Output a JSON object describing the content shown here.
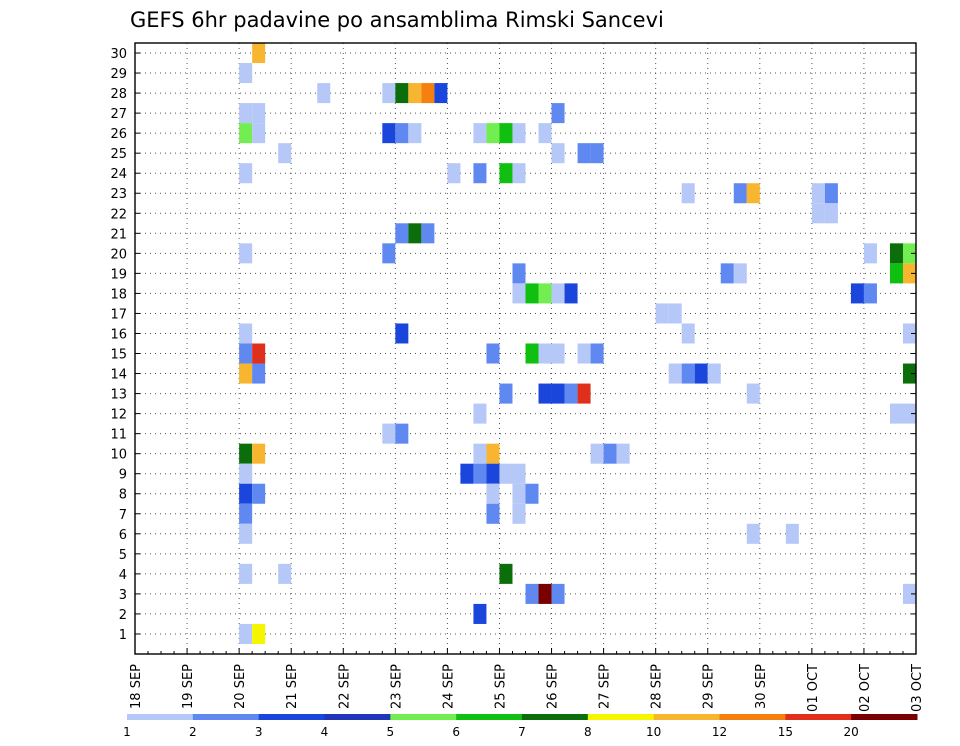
{
  "chart_data": {
    "type": "heatmap",
    "title": "GEFS 6hr padavine po ansamblima Rimski Sancevi",
    "xlabel": "",
    "ylabel": "",
    "x_ticks": [
      "18 SEP",
      "19 SEP",
      "20 SEP",
      "21 SEP",
      "22 SEP",
      "23 SEP",
      "24 SEP",
      "25 SEP",
      "26 SEP",
      "27 SEP",
      "28 SEP",
      "29 SEP",
      "30 SEP",
      "01 OCT",
      "02 OCT",
      "03 OCT"
    ],
    "x_step": "6hr",
    "y_range": [
      0,
      30
    ],
    "y_ticks": [
      1,
      2,
      3,
      4,
      5,
      6,
      7,
      8,
      9,
      10,
      11,
      12,
      13,
      14,
      15,
      16,
      17,
      18,
      19,
      20,
      21,
      22,
      23,
      24,
      25,
      26,
      27,
      28,
      29,
      30
    ],
    "grid": true,
    "legend_position": "bottom",
    "legend_labels": [
      "1",
      "2",
      "3",
      "4",
      "5",
      "6",
      "7",
      "8",
      "10",
      "12",
      "15",
      "20"
    ],
    "legend_colors": [
      "#b5c8f7",
      "#5f88f0",
      "#1a46dc",
      "#2035b8",
      "#72ee50",
      "#10c010",
      "#0b6e0b",
      "#f5f500",
      "#f7b530",
      "#f57f0f",
      "#e0301b",
      "#7a0000"
    ],
    "cells": [
      {
        "x": "20 SEP 06",
        "y": 30,
        "bin": 10
      },
      {
        "x": "20 SEP 00",
        "y": 29,
        "bin": 1
      },
      {
        "x": "21 SEP 12",
        "y": 28,
        "bin": 1
      },
      {
        "x": "22 SEP 18",
        "y": 28,
        "bin": 1
      },
      {
        "x": "23 SEP 00",
        "y": 28,
        "bin": 7
      },
      {
        "x": "23 SEP 06",
        "y": 28,
        "bin": 10
      },
      {
        "x": "23 SEP 12",
        "y": 28,
        "bin": 12
      },
      {
        "x": "23 SEP 18",
        "y": 28,
        "bin": 3
      },
      {
        "x": "20 SEP 00",
        "y": 27,
        "bin": 1
      },
      {
        "x": "20 SEP 06",
        "y": 27,
        "bin": 1
      },
      {
        "x": "26 SEP 00",
        "y": 27,
        "bin": 2
      },
      {
        "x": "20 SEP 00",
        "y": 26,
        "bin": 5
      },
      {
        "x": "20 SEP 06",
        "y": 26,
        "bin": 1
      },
      {
        "x": "22 SEP 18",
        "y": 26,
        "bin": 3
      },
      {
        "x": "23 SEP 00",
        "y": 26,
        "bin": 2
      },
      {
        "x": "23 SEP 06",
        "y": 26,
        "bin": 1
      },
      {
        "x": "24 SEP 12",
        "y": 26,
        "bin": 1
      },
      {
        "x": "24 SEP 18",
        "y": 26,
        "bin": 5
      },
      {
        "x": "25 SEP 00",
        "y": 26,
        "bin": 6
      },
      {
        "x": "25 SEP 06",
        "y": 26,
        "bin": 1
      },
      {
        "x": "25 SEP 18",
        "y": 26,
        "bin": 1
      },
      {
        "x": "20 SEP 18",
        "y": 25,
        "bin": 1
      },
      {
        "x": "26 SEP 00",
        "y": 25,
        "bin": 1
      },
      {
        "x": "26 SEP 12",
        "y": 25,
        "bin": 2
      },
      {
        "x": "26 SEP 18",
        "y": 25,
        "bin": 2
      },
      {
        "x": "20 SEP 00",
        "y": 24,
        "bin": 1
      },
      {
        "x": "24 SEP 00",
        "y": 24,
        "bin": 1
      },
      {
        "x": "24 SEP 12",
        "y": 24,
        "bin": 2
      },
      {
        "x": "25 SEP 00",
        "y": 24,
        "bin": 6
      },
      {
        "x": "25 SEP 06",
        "y": 24,
        "bin": 1
      },
      {
        "x": "28 SEP 12",
        "y": 23,
        "bin": 1
      },
      {
        "x": "29 SEP 12",
        "y": 23,
        "bin": 2
      },
      {
        "x": "29 SEP 18",
        "y": 23,
        "bin": 10
      },
      {
        "x": "01 OCT 00",
        "y": 23,
        "bin": 1
      },
      {
        "x": "01 OCT 06",
        "y": 23,
        "bin": 2
      },
      {
        "x": "01 OCT 00",
        "y": 22,
        "bin": 1
      },
      {
        "x": "01 OCT 06",
        "y": 22,
        "bin": 1
      },
      {
        "x": "23 SEP 00",
        "y": 21,
        "bin": 2
      },
      {
        "x": "23 SEP 06",
        "y": 21,
        "bin": 7
      },
      {
        "x": "23 SEP 12",
        "y": 21,
        "bin": 2
      },
      {
        "x": "20 SEP 00",
        "y": 20,
        "bin": 1
      },
      {
        "x": "22 SEP 18",
        "y": 20,
        "bin": 2
      },
      {
        "x": "02 OCT 00",
        "y": 20,
        "bin": 1
      },
      {
        "x": "02 OCT 12",
        "y": 20,
        "bin": 7
      },
      {
        "x": "02 OCT 18",
        "y": 20,
        "bin": 5
      },
      {
        "x": "25 SEP 06",
        "y": 19,
        "bin": 2
      },
      {
        "x": "29 SEP 06",
        "y": 19,
        "bin": 2
      },
      {
        "x": "29 SEP 12",
        "y": 19,
        "bin": 1
      },
      {
        "x": "02 OCT 12",
        "y": 19,
        "bin": 6
      },
      {
        "x": "02 OCT 18",
        "y": 19,
        "bin": 10
      },
      {
        "x": "25 SEP 06",
        "y": 18,
        "bin": 1
      },
      {
        "x": "25 SEP 12",
        "y": 18,
        "bin": 6
      },
      {
        "x": "25 SEP 18",
        "y": 18,
        "bin": 5
      },
      {
        "x": "26 SEP 00",
        "y": 18,
        "bin": 1
      },
      {
        "x": "26 SEP 06",
        "y": 18,
        "bin": 3
      },
      {
        "x": "01 OCT 18",
        "y": 18,
        "bin": 3
      },
      {
        "x": "02 OCT 00",
        "y": 18,
        "bin": 2
      },
      {
        "x": "28 SEP 00",
        "y": 17,
        "bin": 1
      },
      {
        "x": "28 SEP 06",
        "y": 17,
        "bin": 1
      },
      {
        "x": "20 SEP 00",
        "y": 16,
        "bin": 1
      },
      {
        "x": "23 SEP 00",
        "y": 16,
        "bin": 3
      },
      {
        "x": "28 SEP 12",
        "y": 16,
        "bin": 1
      },
      {
        "x": "02 OCT 18",
        "y": 16,
        "bin": 1
      },
      {
        "x": "20 SEP 00",
        "y": 15,
        "bin": 2
      },
      {
        "x": "20 SEP 06",
        "y": 15,
        "bin": 15
      },
      {
        "x": "24 SEP 18",
        "y": 15,
        "bin": 2
      },
      {
        "x": "25 SEP 12",
        "y": 15,
        "bin": 6
      },
      {
        "x": "25 SEP 18",
        "y": 15,
        "bin": 1
      },
      {
        "x": "26 SEP 00",
        "y": 15,
        "bin": 1
      },
      {
        "x": "26 SEP 12",
        "y": 15,
        "bin": 1
      },
      {
        "x": "26 SEP 18",
        "y": 15,
        "bin": 2
      },
      {
        "x": "20 SEP 00",
        "y": 14,
        "bin": 10
      },
      {
        "x": "20 SEP 06",
        "y": 14,
        "bin": 2
      },
      {
        "x": "28 SEP 06",
        "y": 14,
        "bin": 1
      },
      {
        "x": "28 SEP 12",
        "y": 14,
        "bin": 2
      },
      {
        "x": "28 SEP 18",
        "y": 14,
        "bin": 3
      },
      {
        "x": "29 SEP 00",
        "y": 14,
        "bin": 1
      },
      {
        "x": "02 OCT 18",
        "y": 14,
        "bin": 7
      },
      {
        "x": "25 SEP 00",
        "y": 13,
        "bin": 2
      },
      {
        "x": "25 SEP 18",
        "y": 13,
        "bin": 3
      },
      {
        "x": "26 SEP 00",
        "y": 13,
        "bin": 3
      },
      {
        "x": "26 SEP 06",
        "y": 13,
        "bin": 2
      },
      {
        "x": "26 SEP 12",
        "y": 13,
        "bin": 15
      },
      {
        "x": "29 SEP 18",
        "y": 13,
        "bin": 1
      },
      {
        "x": "24 SEP 12",
        "y": 12,
        "bin": 1
      },
      {
        "x": "02 OCT 12",
        "y": 12,
        "bin": 1
      },
      {
        "x": "02 OCT 18",
        "y": 12,
        "bin": 1
      },
      {
        "x": "22 SEP 18",
        "y": 11,
        "bin": 1
      },
      {
        "x": "23 SEP 00",
        "y": 11,
        "bin": 2
      },
      {
        "x": "20 SEP 00",
        "y": 10,
        "bin": 7
      },
      {
        "x": "20 SEP 06",
        "y": 10,
        "bin": 10
      },
      {
        "x": "24 SEP 12",
        "y": 10,
        "bin": 1
      },
      {
        "x": "24 SEP 18",
        "y": 10,
        "bin": 10
      },
      {
        "x": "26 SEP 18",
        "y": 10,
        "bin": 1
      },
      {
        "x": "27 SEP 00",
        "y": 10,
        "bin": 2
      },
      {
        "x": "27 SEP 06",
        "y": 10,
        "bin": 1
      },
      {
        "x": "20 SEP 00",
        "y": 9,
        "bin": 1
      },
      {
        "x": "24 SEP 06",
        "y": 9,
        "bin": 3
      },
      {
        "x": "24 SEP 12",
        "y": 9,
        "bin": 2
      },
      {
        "x": "24 SEP 18",
        "y": 9,
        "bin": 3
      },
      {
        "x": "25 SEP 00",
        "y": 9,
        "bin": 1
      },
      {
        "x": "25 SEP 06",
        "y": 9,
        "bin": 1
      },
      {
        "x": "20 SEP 00",
        "y": 8,
        "bin": 3
      },
      {
        "x": "20 SEP 06",
        "y": 8,
        "bin": 2
      },
      {
        "x": "24 SEP 18",
        "y": 8,
        "bin": 1
      },
      {
        "x": "25 SEP 06",
        "y": 8,
        "bin": 1
      },
      {
        "x": "25 SEP 12",
        "y": 8,
        "bin": 2
      },
      {
        "x": "20 SEP 00",
        "y": 7,
        "bin": 2
      },
      {
        "x": "24 SEP 18",
        "y": 7,
        "bin": 2
      },
      {
        "x": "25 SEP 06",
        "y": 7,
        "bin": 1
      },
      {
        "x": "20 SEP 00",
        "y": 6,
        "bin": 1
      },
      {
        "x": "29 SEP 18",
        "y": 6,
        "bin": 1
      },
      {
        "x": "30 SEP 12",
        "y": 6,
        "bin": 1
      },
      {
        "x": "20 SEP 00",
        "y": 4,
        "bin": 1
      },
      {
        "x": "20 SEP 18",
        "y": 4,
        "bin": 1
      },
      {
        "x": "25 SEP 00",
        "y": 4,
        "bin": 7
      },
      {
        "x": "25 SEP 12",
        "y": 3,
        "bin": 2
      },
      {
        "x": "25 SEP 18",
        "y": 3,
        "bin": 20
      },
      {
        "x": "26 SEP 00",
        "y": 3,
        "bin": 2
      },
      {
        "x": "02 OCT 18",
        "y": 3,
        "bin": 1
      },
      {
        "x": "24 SEP 12",
        "y": 2,
        "bin": 3
      },
      {
        "x": "20 SEP 00",
        "y": 1,
        "bin": 1
      },
      {
        "x": "20 SEP 06",
        "y": 1,
        "bin": 8
      }
    ]
  }
}
